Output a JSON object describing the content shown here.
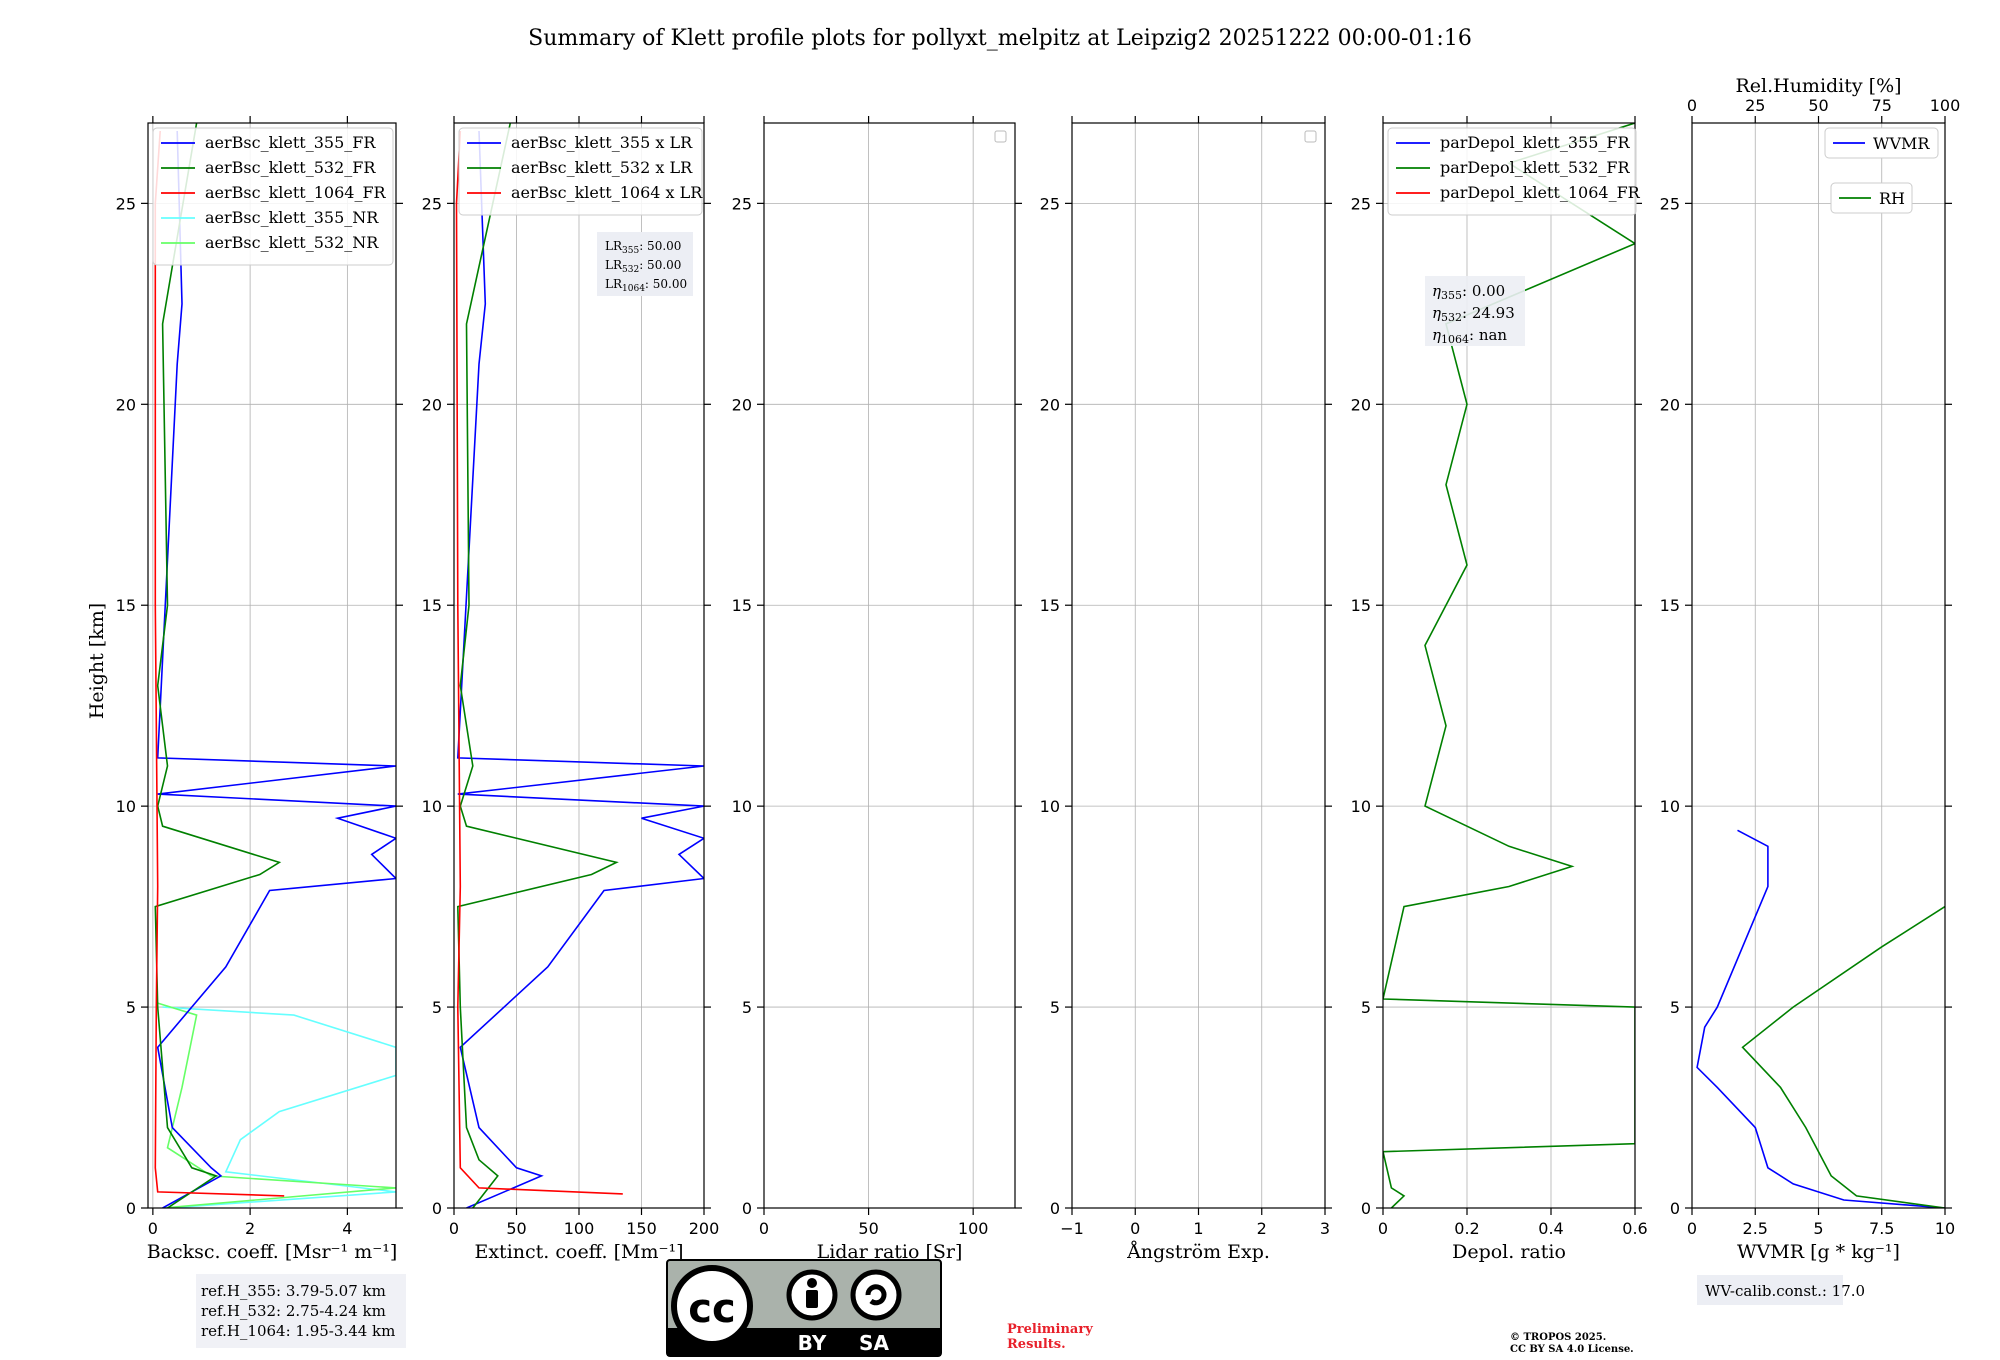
{
  "title": "Summary of Klett profile plots for pollyxt_melpitz at Leipzig2 20251222 00:00-01:16",
  "colors": {
    "b355": "#0000ff",
    "b532": "#008000",
    "b1064": "#ff0000",
    "nr355": "#66ffff",
    "nr532": "#66ff66",
    "wvmr": "#0000ff",
    "rh": "#008000",
    "grid": "#b0b0b0",
    "prelim": "#e8202a"
  },
  "footer": {
    "refh": [
      "ref.H_355: 3.79-5.07 km",
      "ref.H_532: 2.75-4.24 km",
      "ref.H_1064: 1.95-3.44 km"
    ],
    "cc_by": "BY",
    "cc_sa": "SA",
    "cc_logo": "cc",
    "preliminary": [
      "Preliminary",
      "Results."
    ],
    "copyright": [
      "© TROPOS 2025.",
      "CC BY SA 4.0 License."
    ]
  },
  "chart_data": [
    {
      "type": "line",
      "id": "bsc",
      "xlabel": "Backsc. coeff. [Msr⁻¹ m⁻¹]",
      "ylabel": "Height [km]",
      "xlim": [
        -0.1,
        5.0
      ],
      "ylim": [
        0,
        27
      ],
      "xticks": [
        0,
        2,
        4
      ],
      "yticks": [
        0,
        5,
        10,
        15,
        20,
        25
      ],
      "legend": [
        "aerBsc_klett_355_FR",
        "aerBsc_klett_532_FR",
        "aerBsc_klett_1064_FR",
        "aerBsc_klett_355_NR",
        "aerBsc_klett_532_NR"
      ],
      "series": [
        {
          "name": "aerBsc_klett_355_NR",
          "color": "nr355",
          "points": [
            [
              0.3,
              0
            ],
            [
              5.0,
              0.4
            ],
            [
              1.5,
              0.9
            ],
            [
              1.8,
              1.7
            ],
            [
              2.6,
              2.4
            ],
            [
              5.0,
              3.3
            ],
            [
              5.0,
              4.0
            ],
            [
              2.9,
              4.8
            ],
            [
              0.2,
              5.0
            ]
          ]
        },
        {
          "name": "aerBsc_klett_532_NR",
          "color": "nr532",
          "points": [
            [
              0.2,
              0
            ],
            [
              5.0,
              0.5
            ],
            [
              1.2,
              0.8
            ],
            [
              0.3,
              1.5
            ],
            [
              0.6,
              3.0
            ],
            [
              0.9,
              4.8
            ],
            [
              0.1,
              5.1
            ]
          ]
        },
        {
          "name": "aerBsc_klett_355_FR",
          "color": "b355",
          "points": [
            [
              0.2,
              0
            ],
            [
              1.4,
              0.8
            ],
            [
              1.2,
              1.0
            ],
            [
              0.4,
              2.0
            ],
            [
              0.1,
              4.0
            ],
            [
              1.5,
              6.0
            ],
            [
              2.4,
              7.9
            ],
            [
              5.0,
              8.2
            ],
            [
              4.5,
              8.8
            ],
            [
              5.0,
              9.2
            ],
            [
              3.8,
              9.7
            ],
            [
              5.0,
              10.0
            ],
            [
              0.1,
              10.3
            ],
            [
              5.0,
              11.0
            ],
            [
              0.1,
              11.2
            ],
            [
              0.5,
              21.0
            ],
            [
              0.6,
              22.5
            ],
            [
              0.5,
              26.8
            ]
          ]
        },
        {
          "name": "aerBsc_klett_532_FR",
          "color": "b532",
          "points": [
            [
              0.3,
              0
            ],
            [
              1.3,
              0.8
            ],
            [
              0.8,
              1.0
            ],
            [
              0.3,
              2.0
            ],
            [
              0.1,
              5.0
            ],
            [
              0.05,
              7.5
            ],
            [
              2.2,
              8.3
            ],
            [
              2.6,
              8.6
            ],
            [
              0.2,
              9.5
            ],
            [
              0.1,
              10.0
            ],
            [
              0.3,
              11.0
            ],
            [
              0.1,
              13.0
            ],
            [
              0.3,
              15.0
            ],
            [
              0.2,
              22.0
            ],
            [
              0.9,
              27.0
            ]
          ]
        },
        {
          "name": "aerBsc_klett_1064_FR",
          "color": "b1064",
          "points": [
            [
              2.7,
              0.3
            ],
            [
              0.1,
              0.4
            ],
            [
              0.05,
              1.0
            ],
            [
              0.07,
              5.0
            ],
            [
              0.1,
              8.0
            ],
            [
              0.05,
              15.0
            ],
            [
              0.05,
              25.0
            ],
            [
              0.15,
              26.8
            ]
          ]
        }
      ]
    },
    {
      "type": "line",
      "id": "ext",
      "xlabel": "Extinct. coeff. [Mm⁻¹]",
      "xlim": [
        0,
        200
      ],
      "ylim": [
        0,
        27
      ],
      "xticks": [
        0,
        50,
        100,
        150,
        200
      ],
      "yticks": [
        0,
        5,
        10,
        15,
        20,
        25
      ],
      "legend": [
        "aerBsc_klett_355 x LR",
        "aerBsc_klett_532 x LR",
        "aerBsc_klett_1064 x LR"
      ],
      "annotation": [
        "50.00",
        "50.00",
        "50.00"
      ],
      "series": [
        {
          "name": "aerBsc_klett_355 x LR",
          "color": "b355",
          "points": [
            [
              10,
              0
            ],
            [
              70,
              0.8
            ],
            [
              50,
              1.0
            ],
            [
              20,
              2.0
            ],
            [
              5,
              4.0
            ],
            [
              75,
              6.0
            ],
            [
              120,
              7.9
            ],
            [
              200,
              8.2
            ],
            [
              180,
              8.8
            ],
            [
              200,
              9.2
            ],
            [
              150,
              9.7
            ],
            [
              200,
              10.0
            ],
            [
              3,
              10.3
            ],
            [
              200,
              11.0
            ],
            [
              3,
              11.2
            ],
            [
              20,
              21.0
            ],
            [
              25,
              22.5
            ],
            [
              20,
              26.8
            ]
          ]
        },
        {
          "name": "aerBsc_klett_532 x LR",
          "color": "b532",
          "points": [
            [
              15,
              0
            ],
            [
              35,
              0.8
            ],
            [
              20,
              1.2
            ],
            [
              10,
              2.0
            ],
            [
              5,
              5.0
            ],
            [
              3,
              7.5
            ],
            [
              110,
              8.3
            ],
            [
              130,
              8.6
            ],
            [
              10,
              9.5
            ],
            [
              5,
              10.0
            ],
            [
              15,
              11.0
            ],
            [
              5,
              13.0
            ],
            [
              12,
              15.0
            ],
            [
              10,
              22.0
            ],
            [
              45,
              27.0
            ]
          ]
        },
        {
          "name": "aerBsc_klett_1064 x LR",
          "color": "b1064",
          "points": [
            [
              135,
              0.35
            ],
            [
              20,
              0.5
            ],
            [
              5,
              1.0
            ],
            [
              3,
              5.0
            ],
            [
              5,
              8.0
            ],
            [
              3,
              15.0
            ],
            [
              2,
              25.0
            ],
            [
              5,
              26.8
            ]
          ]
        }
      ]
    },
    {
      "type": "line",
      "id": "lr",
      "xlabel": "Lidar ratio [Sr]",
      "xlim": [
        0,
        120
      ],
      "ylim": [
        0,
        27
      ],
      "xticks": [
        0,
        50,
        100
      ],
      "yticks": [
        0,
        5,
        10,
        15,
        20,
        25
      ],
      "series": []
    },
    {
      "type": "line",
      "id": "ang",
      "xlabel": "Ångström Exp.",
      "xlim": [
        -1,
        3
      ],
      "ylim": [
        0,
        27
      ],
      "xticks": [
        -1,
        0,
        1,
        2,
        3
      ],
      "yticks": [
        0,
        5,
        10,
        15,
        20,
        25
      ],
      "series": []
    },
    {
      "type": "line",
      "id": "dep",
      "xlabel": "Depol. ratio",
      "xlim": [
        0,
        0.6
      ],
      "ylim": [
        0,
        27
      ],
      "xticks": [
        0.0,
        0.2,
        0.4,
        0.6
      ],
      "yticks": [
        0,
        5,
        10,
        15,
        20,
        25
      ],
      "legend": [
        "parDepol_klett_355_FR",
        "parDepol_klett_532_FR",
        "parDepol_klett_1064_FR"
      ],
      "annotation": [
        "0.00",
        "24.93",
        "nan"
      ],
      "series": [
        {
          "name": "parDepol_klett_532_FR",
          "color": "b532",
          "points": [
            [
              0.02,
              0.0
            ],
            [
              0.05,
              0.3
            ],
            [
              0.02,
              0.5
            ],
            [
              0.0,
              1.4
            ],
            [
              0.6,
              1.6
            ],
            [
              0.6,
              5.0
            ],
            [
              0.0,
              5.2
            ],
            [
              0.05,
              7.5
            ],
            [
              0.3,
              8.0
            ],
            [
              0.45,
              8.5
            ],
            [
              0.3,
              9.0
            ],
            [
              0.1,
              10.0
            ],
            [
              0.15,
              12.0
            ],
            [
              0.1,
              14.0
            ],
            [
              0.2,
              16.0
            ],
            [
              0.15,
              18.0
            ],
            [
              0.2,
              20.0
            ],
            [
              0.15,
              22.0
            ],
            [
              0.6,
              24.0
            ],
            [
              0.3,
              26.0
            ],
            [
              0.6,
              27.0
            ]
          ]
        }
      ]
    },
    {
      "type": "line",
      "id": "wv",
      "xlabel": "WVMR [g * kg⁻¹]",
      "x2label": "Rel.Humidity [%]",
      "xlim": [
        0,
        10
      ],
      "x2lim": [
        0,
        100
      ],
      "ylim": [
        0,
        27
      ],
      "xticks": [
        0.0,
        2.5,
        5.0,
        7.5,
        10.0
      ],
      "x2ticks": [
        0,
        25,
        50,
        75,
        100
      ],
      "yticks": [
        0,
        5,
        10,
        15,
        20,
        25
      ],
      "legend": [
        "WVMR",
        "RH"
      ],
      "annotation": "17.0",
      "series": [
        {
          "name": "WVMR",
          "color": "wvmr",
          "points": [
            [
              10,
              0
            ],
            [
              6,
              0.2
            ],
            [
              4,
              0.6
            ],
            [
              3,
              1.0
            ],
            [
              2.5,
              2.0
            ],
            [
              1.0,
              3.0
            ],
            [
              0.2,
              3.5
            ],
            [
              0.5,
              4.5
            ],
            [
              1.0,
              5.0
            ],
            [
              2.0,
              6.5
            ],
            [
              3.0,
              8.0
            ],
            [
              3.0,
              9.0
            ],
            [
              1.8,
              9.4
            ]
          ]
        },
        {
          "name": "RH",
          "color": "rh",
          "points": [
            [
              100,
              0
            ],
            [
              65,
              0.3
            ],
            [
              55,
              0.8
            ],
            [
              45,
              2.0
            ],
            [
              35,
              3.0
            ],
            [
              20,
              4.0
            ],
            [
              40,
              5.0
            ],
            [
              75,
              6.5
            ],
            [
              100,
              7.5
            ]
          ]
        }
      ]
    }
  ]
}
